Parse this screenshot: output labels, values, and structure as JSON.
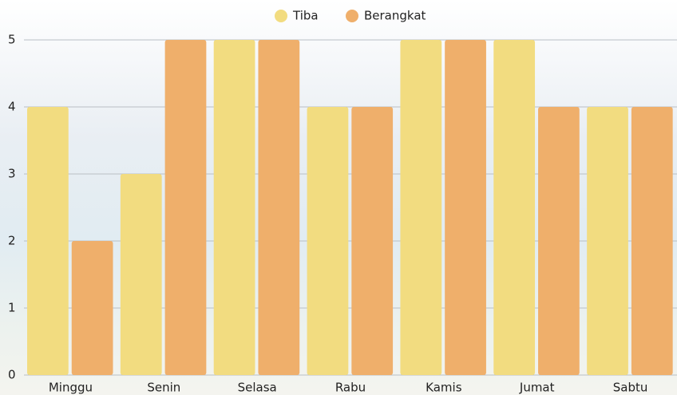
{
  "chart_data": {
    "type": "bar",
    "categories": [
      "Minggu",
      "Senin",
      "Selasa",
      "Rabu",
      "Kamis",
      "Jumat",
      "Sabtu"
    ],
    "series": [
      {
        "name": "Tiba",
        "color": "#f2dc80",
        "values": [
          4,
          3,
          5,
          4,
          5,
          5,
          4
        ]
      },
      {
        "name": "Berangkat",
        "color": "#efaf6b",
        "values": [
          2,
          5,
          5,
          4,
          5,
          4,
          4
        ]
      }
    ],
    "ylim": [
      0,
      5
    ],
    "yticks": [
      0,
      1,
      2,
      3,
      4,
      5
    ],
    "grid": true,
    "legend": "top"
  }
}
